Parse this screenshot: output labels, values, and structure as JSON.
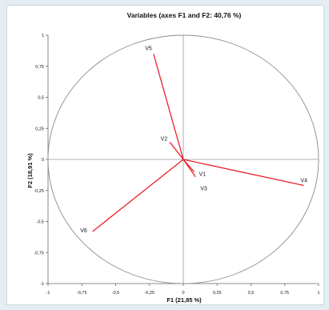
{
  "chart_data": {
    "type": "scatter",
    "title": "Variables (axes F1 and F2: 40,76 %)",
    "xlabel": "F1 (21,85 %)",
    "ylabel": "F2 (18,91 %)",
    "xlim": [
      -1,
      1
    ],
    "ylim": [
      -1,
      1
    ],
    "x_ticks": [
      "-1",
      "-0,75",
      "-0,5",
      "-0,25",
      "0",
      "0,25",
      "0,5",
      "0,75",
      "1"
    ],
    "y_ticks": [
      "-1",
      "-0,75",
      "-0,5",
      "-0,25",
      "0",
      "0,25",
      "0,5",
      "0,75",
      "1"
    ],
    "x_tick_values": [
      -1,
      -0.75,
      -0.5,
      -0.25,
      0,
      0.25,
      0.5,
      0.75,
      1
    ],
    "y_tick_values": [
      -1,
      -0.75,
      -0.5,
      -0.25,
      0,
      0.25,
      0.5,
      0.75,
      1
    ],
    "unit_circle": true,
    "vector_color": "#e8202a",
    "points": [
      {
        "name": "V1",
        "x": 0.08,
        "y": -0.1
      },
      {
        "name": "V2",
        "x": -0.1,
        "y": 0.14
      },
      {
        "name": "V3",
        "x": 0.09,
        "y": -0.14
      },
      {
        "name": "V4",
        "x": 0.89,
        "y": -0.21
      },
      {
        "name": "V5",
        "x": -0.22,
        "y": 0.85
      },
      {
        "name": "V6",
        "x": -0.67,
        "y": -0.58
      }
    ]
  }
}
